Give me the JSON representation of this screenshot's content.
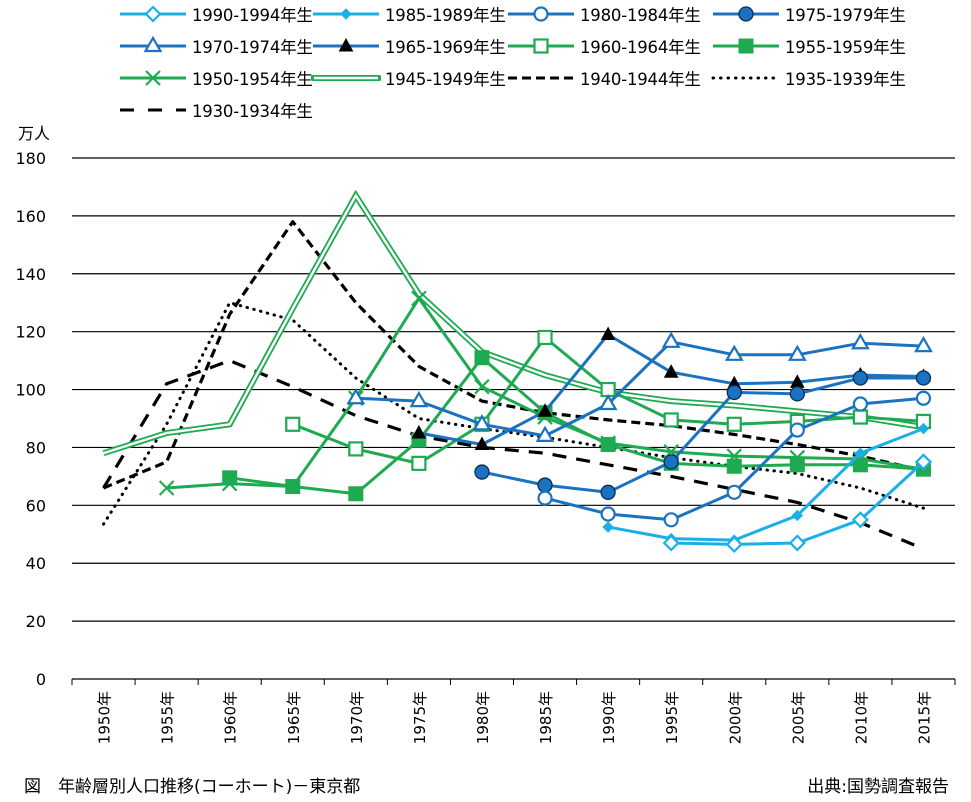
{
  "footer": {
    "caption": "図　年齢層別人口推移(コーホート)－東京都",
    "source": "出典:国勢調査報告"
  },
  "colors": {
    "light_blue": "#1AAFE6",
    "blue": "#1B72C0",
    "green": "#1EAA50",
    "black": "#000000",
    "grid": "#000000"
  },
  "chart_data": {
    "type": "line",
    "title": "年齢層別人口推移(コーホート)－東京都",
    "xlabel": "",
    "ylabel": "万人",
    "ylim": [
      0,
      180
    ],
    "yticks": [
      0,
      20,
      40,
      60,
      80,
      100,
      120,
      140,
      160,
      180
    ],
    "grid": true,
    "legend_position": "top",
    "categories": [
      "1950年",
      "1955年",
      "1960年",
      "1965年",
      "1970年",
      "1975年",
      "1980年",
      "1985年",
      "1990年",
      "1995年",
      "2000年",
      "2005年",
      "2010年",
      "2015年"
    ],
    "series": [
      {
        "name": "1990-1994年生",
        "color": "#1AAFE6",
        "marker": "diamond-open",
        "line": "solid",
        "values": [
          null,
          null,
          null,
          null,
          null,
          null,
          null,
          null,
          null,
          47,
          46.5,
          47,
          55,
          75
        ]
      },
      {
        "name": "1985-1989年生",
        "color": "#1AAFE6",
        "marker": "diamond-small",
        "line": "solid",
        "values": [
          null,
          null,
          null,
          null,
          null,
          null,
          null,
          null,
          52.5,
          48.5,
          48,
          56.5,
          78,
          86.5
        ]
      },
      {
        "name": "1980-1984年生",
        "color": "#1B72C0",
        "marker": "circle-open",
        "line": "solid",
        "values": [
          null,
          null,
          null,
          null,
          null,
          null,
          null,
          62.5,
          57,
          55,
          64.5,
          86,
          95,
          97
        ]
      },
      {
        "name": "1975-1979年生",
        "color": "#1B72C0",
        "marker": "circle-filled",
        "line": "solid",
        "values": [
          null,
          null,
          null,
          null,
          null,
          null,
          71.5,
          67,
          64.5,
          75,
          99,
          98.5,
          104,
          104
        ]
      },
      {
        "name": "1970-1974年生",
        "color": "#1B72C0",
        "marker": "triangle-open",
        "line": "solid",
        "values": [
          null,
          null,
          null,
          null,
          97,
          96,
          88,
          84,
          95,
          116.5,
          112,
          112,
          116,
          115
        ]
      },
      {
        "name": "1965-1969年生",
        "color": "#1B72C0",
        "marker": "triangle-filled",
        "line": "solid",
        "values": [
          null,
          null,
          null,
          null,
          null,
          85,
          81,
          92.5,
          119,
          106,
          102,
          102.5,
          105,
          104.5
        ]
      },
      {
        "name": "1960-1964年生",
        "color": "#1EAA50",
        "marker": "square-open",
        "line": "solid",
        "values": [
          null,
          null,
          null,
          88,
          79.5,
          74.5,
          88,
          118,
          100,
          89.5,
          88,
          89,
          90.5,
          89
        ]
      },
      {
        "name": "1955-1959年生",
        "color": "#1EAA50",
        "marker": "square-filled",
        "line": "solid",
        "values": [
          null,
          null,
          69.5,
          66.5,
          64,
          82.5,
          111,
          92,
          81,
          74.5,
          73.5,
          74,
          74,
          72.5
        ]
      },
      {
        "name": "1950-1954年生",
        "color": "#1EAA50",
        "marker": "x",
        "line": "solid",
        "values": [
          null,
          66,
          67.5,
          66.5,
          97,
          131.5,
          101,
          90.5,
          81.5,
          78.5,
          77,
          76.5,
          76,
          72.5
        ]
      },
      {
        "name": "1945-1949年生",
        "color": "#1EAA50",
        "marker": "none",
        "line": "double",
        "values": [
          78,
          85,
          88,
          128,
          167,
          133,
          113,
          105,
          99,
          96,
          94.5,
          92.5,
          90.5,
          87
        ]
      },
      {
        "name": "1940-1944年生",
        "color": "#000000",
        "marker": "none",
        "line": "dash",
        "values": [
          66,
          75,
          126,
          158,
          130,
          108,
          96,
          92,
          89.5,
          87.5,
          84.5,
          81,
          77,
          72
        ]
      },
      {
        "name": "1935-1939年生",
        "color": "#000000",
        "marker": "none",
        "line": "dot",
        "values": [
          53.5,
          88,
          130,
          124,
          104,
          90,
          86.5,
          83.5,
          80,
          76.5,
          73.5,
          71,
          66,
          59
        ]
      },
      {
        "name": "1930-1934年生",
        "color": "#000000",
        "marker": "none",
        "line": "longdash",
        "values": [
          66,
          102,
          110,
          101,
          91,
          84,
          80,
          78,
          74,
          70,
          65.5,
          61,
          54,
          45
        ]
      }
    ]
  }
}
